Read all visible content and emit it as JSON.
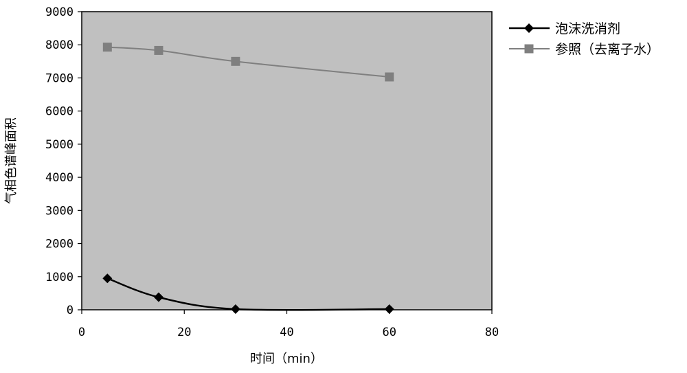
{
  "chart_data": {
    "type": "line",
    "title": "",
    "xlabel": "时间（min）",
    "ylabel": "气相色谱峰面积",
    "xlim": [
      0,
      80
    ],
    "ylim": [
      0,
      9000
    ],
    "xticks": [
      0,
      20,
      40,
      60,
      80
    ],
    "yticks": [
      0,
      1000,
      2000,
      3000,
      4000,
      5000,
      6000,
      7000,
      8000,
      9000
    ],
    "grid": false,
    "legend_position": "right",
    "plot_background": "#c0c0c0",
    "series": [
      {
        "name": "泡沫洗消剂",
        "marker": "diamond",
        "color": "#000000",
        "x": [
          5,
          15,
          30,
          60
        ],
        "y": [
          950,
          380,
          20,
          20
        ]
      },
      {
        "name": "参照（去离子水）",
        "marker": "square",
        "color": "#7f7f7f",
        "x": [
          5,
          15,
          30,
          60
        ],
        "y": [
          7930,
          7830,
          7500,
          7030
        ]
      }
    ]
  }
}
